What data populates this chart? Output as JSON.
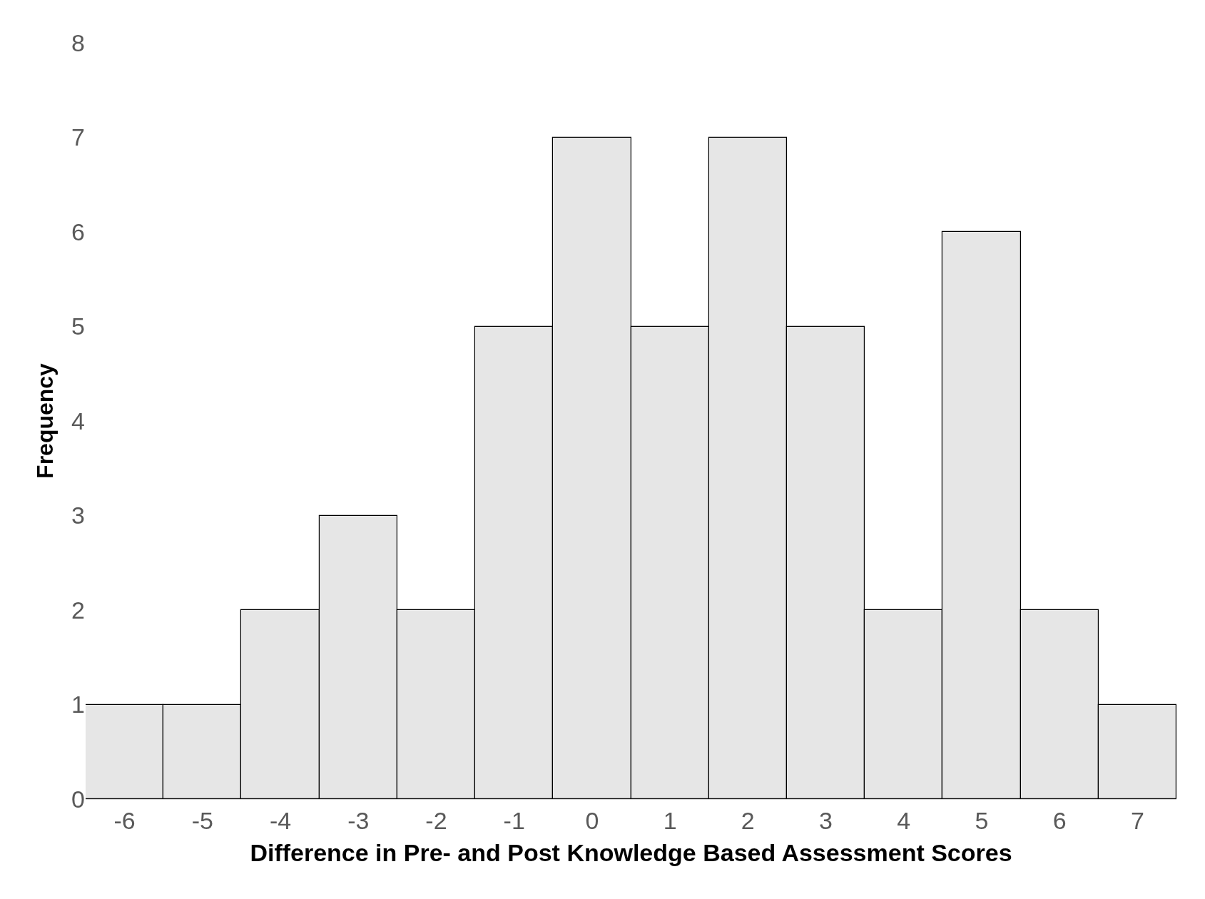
{
  "chart_data": {
    "type": "bar",
    "xlabel": "Difference in Pre- and Post Knowledge Based Assessment Scores",
    "ylabel": "Frequency",
    "categories": [
      "-6",
      "-5",
      "-4",
      "-3",
      "-2",
      "-1",
      "0",
      "1",
      "2",
      "3",
      "4",
      "5",
      "6",
      "7"
    ],
    "values": [
      1,
      1,
      2,
      3,
      2,
      5,
      7,
      5,
      7,
      5,
      2,
      6,
      2,
      1
    ],
    "color": "#e6e6e6",
    "ylim": [
      0,
      8
    ],
    "yticks": [
      0,
      1,
      2,
      3,
      4,
      5,
      6,
      7,
      8
    ]
  }
}
